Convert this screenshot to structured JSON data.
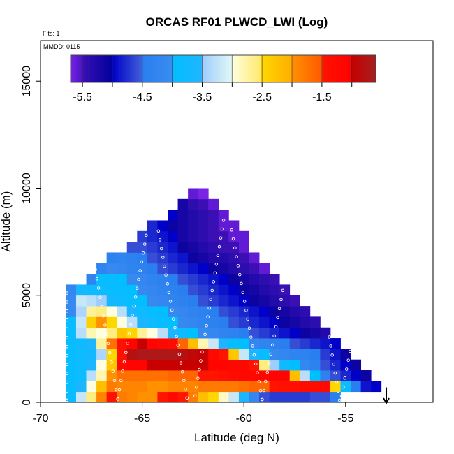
{
  "chart_data": {
    "type": "heatmap",
    "title": "ORCAS RF01 PLWCD_LWI (Log)",
    "xlabel": "Latitude (deg N)",
    "ylabel": "Altitude (m)",
    "flights_label": "Flts: 1",
    "date_label": "MMDD: 0115",
    "xlim": [
      -70,
      -50.7
    ],
    "ylim": [
      0,
      16900
    ],
    "x_ticks": [
      -70,
      -65,
      -60,
      -55
    ],
    "x_tick_labels": [
      "-70",
      "-65",
      "-60",
      "-55"
    ],
    "y_ticks": [
      0,
      5000,
      10000,
      15000
    ],
    "y_tick_labels": [
      "0",
      "5000",
      "10000",
      "15000"
    ],
    "grid": false,
    "x_centers": [
      -68.5,
      -68,
      -67.5,
      -67,
      -66.5,
      -66,
      -65.5,
      -65,
      -64.5,
      -64,
      -63.5,
      -63,
      -62.5,
      -62,
      -61.5,
      -61,
      -60.5,
      -60,
      -59.5,
      -59,
      -58.5,
      -58,
      -57.5,
      -57,
      -56.5,
      -56,
      -55.5,
      -55,
      -54.5,
      -54,
      -53.5
    ],
    "x_bin_width": 0.5,
    "y_centers": [
      250,
      750,
      1250,
      1750,
      2250,
      2750,
      3250,
      3750,
      4250,
      4750,
      5250,
      5750,
      6250,
      6750,
      7250,
      7750,
      8250,
      8750,
      9250,
      9750
    ],
    "y_bin_height": 500,
    "values": [
      [
        -3.9,
        -3.2,
        -2.6,
        -1.9,
        -1.4,
        -1.8,
        -1.9,
        -2.0,
        -2.0,
        -1.5,
        -1.2,
        -1.5,
        -1.8,
        -2.2,
        -2.5,
        -2.9,
        -3.2,
        -3.6,
        -4.2,
        -4.6,
        -4.7,
        -4.7,
        -4.7,
        -4.7,
        -4.6,
        -4.6,
        -4.5,
        null,
        null,
        null,
        null
      ],
      [
        -3.9,
        -3.6,
        -3.0,
        -2.2,
        -1.8,
        -1.9,
        -1.9,
        -1.9,
        -2.0,
        -2.0,
        -1.9,
        -1.9,
        -1.9,
        -1.8,
        -1.8,
        -1.8,
        -1.8,
        -1.7,
        -1.6,
        -1.6,
        -1.5,
        -1.4,
        -1.4,
        -1.3,
        -1.3,
        -1.2,
        -2.5,
        -3.8,
        -4.5,
        -4.9,
        -5.0
      ],
      [
        -3.9,
        -3.8,
        -3.3,
        -2.8,
        -2.0,
        -1.7,
        -1.7,
        -1.7,
        -1.7,
        -1.7,
        -1.6,
        -1.6,
        -1.6,
        -1.5,
        -1.5,
        -1.4,
        -1.3,
        -1.2,
        -1.2,
        -1.1,
        -1.1,
        -1.1,
        -2.2,
        -3.3,
        -4.0,
        -4.4,
        -4.6,
        -4.8,
        -5.0,
        -5.1,
        null
      ],
      [
        -3.9,
        -3.8,
        -3.6,
        -3.0,
        -2.3,
        -1.2,
        -1.1,
        -1.1,
        -1.0,
        -1.0,
        -1.0,
        -1.0,
        -1.0,
        -1.0,
        -1.1,
        -1.1,
        -1.2,
        -1.2,
        -1.5,
        -2.6,
        -3.5,
        -3.8,
        -4.0,
        -4.2,
        -4.4,
        -4.6,
        -4.8,
        -5.0,
        -5.1,
        null,
        null
      ],
      [
        -3.9,
        -3.8,
        -3.7,
        -3.4,
        -2.5,
        -1.4,
        -0.8,
        -0.7,
        -0.7,
        -0.7,
        -0.7,
        -0.8,
        -0.9,
        -1.0,
        -1.2,
        -1.5,
        -2.3,
        -3.2,
        -3.6,
        -3.9,
        -4.1,
        -4.2,
        -4.3,
        -4.4,
        -4.5,
        -4.7,
        -4.9,
        -5.1,
        null,
        null,
        null
      ],
      [
        -3.9,
        -3.8,
        -3.6,
        -2.7,
        -1.7,
        -1.4,
        -1.1,
        -1.0,
        -1.1,
        -1.2,
        -1.3,
        -1.6,
        -2.2,
        -2.8,
        -3.2,
        -3.6,
        -3.9,
        -4.0,
        -4.2,
        -4.3,
        -4.4,
        -4.5,
        -4.6,
        -4.7,
        -4.8,
        -4.9,
        -5.0,
        null,
        null,
        null,
        null
      ],
      [
        -3.9,
        -3.3,
        -2.8,
        -3.0,
        -2.6,
        -2.3,
        -2.5,
        -2.7,
        -3.0,
        -3.3,
        -3.6,
        -3.8,
        -4.0,
        -4.1,
        -4.2,
        -4.3,
        -4.4,
        -4.5,
        -4.6,
        -4.7,
        -4.8,
        -4.9,
        -5.0,
        -5.1,
        -5.2,
        -5.3,
        null,
        null,
        null,
        null,
        null
      ],
      [
        -3.9,
        -3.2,
        -2.4,
        -2.0,
        -2.5,
        -3.0,
        -3.3,
        -3.6,
        -3.8,
        -3.9,
        -4.0,
        -4.1,
        -4.2,
        -4.3,
        -4.4,
        -4.5,
        -4.6,
        -4.7,
        -4.8,
        -4.9,
        -5.0,
        -5.1,
        -5.2,
        -5.3,
        -5.4,
        null,
        null,
        null,
        null,
        null,
        null
      ],
      [
        -4.1,
        -3.4,
        -2.7,
        -2.6,
        -3.0,
        -3.3,
        -3.6,
        -3.8,
        -3.9,
        -4.0,
        -4.1,
        -4.2,
        -4.3,
        -4.4,
        -4.5,
        -4.6,
        -4.7,
        -4.8,
        -4.9,
        -5.0,
        -5.1,
        -5.2,
        -5.3,
        -5.4,
        null,
        null,
        null,
        null,
        null,
        null,
        null
      ],
      [
        -4.1,
        -3.2,
        -3.3,
        -3.5,
        -3.7,
        -3.8,
        -3.9,
        -4.0,
        -4.1,
        -4.2,
        -4.3,
        -4.4,
        -4.5,
        -4.6,
        -4.7,
        -4.8,
        -4.9,
        -5.0,
        -5.1,
        -5.2,
        -5.3,
        -5.4,
        -5.5,
        null,
        null,
        null,
        null,
        null,
        null,
        null,
        null
      ],
      [
        -4.2,
        -3.7,
        -3.8,
        -3.8,
        -3.9,
        -3.9,
        -4.0,
        -4.1,
        -4.2,
        -4.3,
        -4.4,
        -4.5,
        -4.6,
        -4.7,
        -4.8,
        -4.9,
        -5.0,
        -5.1,
        -5.2,
        -5.3,
        -5.4,
        -5.5,
        null,
        null,
        null,
        null,
        null,
        null,
        null,
        null,
        null
      ],
      [
        null,
        null,
        -4.3,
        -3.9,
        -3.9,
        -4.0,
        -4.1,
        -4.2,
        -4.3,
        -4.4,
        -4.5,
        -4.6,
        -4.7,
        -4.8,
        -4.9,
        -5.0,
        -5.1,
        -5.2,
        -5.3,
        -5.4,
        -5.5,
        null,
        null,
        null,
        null,
        null,
        null,
        null,
        null,
        null,
        null
      ],
      [
        null,
        null,
        null,
        -4.3,
        -4.1,
        -4.2,
        -4.3,
        -4.4,
        -4.5,
        -4.6,
        -4.7,
        -4.8,
        -4.9,
        -5.0,
        -5.1,
        -5.2,
        -5.3,
        -5.4,
        -5.5,
        -5.6,
        null,
        null,
        null,
        null,
        null,
        null,
        null,
        null,
        null,
        null,
        null
      ],
      [
        null,
        null,
        null,
        null,
        -4.4,
        -4.3,
        -4.4,
        -4.5,
        -4.6,
        -4.7,
        -4.8,
        -4.9,
        -5.1,
        -5.2,
        -5.3,
        -5.3,
        -5.4,
        -5.5,
        -5.6,
        null,
        null,
        null,
        null,
        null,
        null,
        null,
        null,
        null,
        null,
        null,
        null
      ],
      [
        null,
        null,
        null,
        null,
        null,
        null,
        -4.6,
        -4.6,
        -4.7,
        -4.8,
        -4.9,
        -5.1,
        -5.2,
        -5.3,
        -5.4,
        -5.5,
        -5.5,
        -5.6,
        null,
        null,
        null,
        null,
        null,
        null,
        null,
        null,
        null,
        null,
        null,
        null,
        null
      ],
      [
        null,
        null,
        null,
        null,
        null,
        null,
        null,
        -4.7,
        -4.8,
        -4.9,
        -5.0,
        -5.2,
        -5.3,
        -5.4,
        -5.5,
        -5.5,
        -5.6,
        -5.6,
        null,
        null,
        null,
        null,
        null,
        null,
        null,
        null,
        null,
        null,
        null,
        null,
        null
      ],
      [
        null,
        null,
        null,
        null,
        null,
        null,
        null,
        null,
        -4.8,
        -5.0,
        -5.1,
        -5.2,
        -5.3,
        -5.4,
        -5.5,
        -5.6,
        -5.6,
        null,
        null,
        null,
        null,
        null,
        null,
        null,
        null,
        null,
        null,
        null,
        null,
        null,
        null
      ],
      [
        null,
        null,
        null,
        null,
        null,
        null,
        null,
        null,
        null,
        null,
        -5.0,
        -5.2,
        -5.3,
        -5.4,
        -5.5,
        -5.6,
        null,
        null,
        null,
        null,
        null,
        null,
        null,
        null,
        null,
        null,
        null,
        null,
        null,
        null,
        null
      ],
      [
        null,
        null,
        null,
        null,
        null,
        null,
        null,
        null,
        null,
        null,
        null,
        -5.2,
        -5.4,
        -5.5,
        -5.6,
        null,
        null,
        null,
        null,
        null,
        null,
        null,
        null,
        null,
        null,
        null,
        null,
        null,
        null,
        null,
        null
      ],
      [
        null,
        null,
        null,
        null,
        null,
        null,
        null,
        null,
        null,
        null,
        null,
        null,
        -5.6,
        -5.7,
        null,
        null,
        null,
        null,
        null,
        null,
        null,
        null,
        null,
        null,
        null,
        null,
        null,
        null,
        null,
        null,
        null
      ]
    ],
    "colorbar": {
      "range": [
        -5.7,
        -0.6
      ],
      "ticks": [
        -5.5,
        -4.5,
        -3.5,
        -2.5,
        -1.5
      ],
      "tick_labels": [
        "-5.5",
        "-4.5",
        "-3.5",
        "-2.5",
        "-1.5"
      ],
      "minor_ticks": [
        -5.0,
        -4.0,
        -3.0,
        -2.0,
        -1.0
      ],
      "segments": [
        {
          "from": -5.7,
          "to": -5.5,
          "colors": [
            "#7a22e6",
            "#4a14c4"
          ]
        },
        {
          "from": -5.5,
          "to": -5.0,
          "colors": [
            "#3a10b4",
            "#00009c"
          ]
        },
        {
          "from": -5.0,
          "to": -4.5,
          "colors": [
            "#0000c8",
            "#4262d8"
          ]
        },
        {
          "from": -4.5,
          "to": -4.0,
          "colors": [
            "#2a7ff0",
            "#3a8cf0"
          ]
        },
        {
          "from": -4.0,
          "to": -3.5,
          "colors": [
            "#00bfff",
            "#22b4ff"
          ]
        },
        {
          "from": -3.5,
          "to": -3.0,
          "colors": [
            "#9ecdff",
            "#e2f8f5"
          ]
        },
        {
          "from": -3.0,
          "to": -2.5,
          "colors": [
            "#ffffe0",
            "#ffe868"
          ]
        },
        {
          "from": -2.5,
          "to": -2.0,
          "colors": [
            "#ffd700",
            "#ffae00"
          ]
        },
        {
          "from": -2.0,
          "to": -1.5,
          "colors": [
            "#ff9000",
            "#ff5a00"
          ]
        },
        {
          "from": -1.5,
          "to": -1.0,
          "colors": [
            "#ff1400",
            "#ff0000"
          ]
        },
        {
          "from": -1.0,
          "to": -0.6,
          "colors": [
            "#c80000",
            "#a52020"
          ]
        }
      ]
    },
    "flight_track": [
      [
        [
          -68.7,
          100
        ],
        [
          -68.7,
          5100
        ]
      ],
      [
        [
          -66.2,
          150
        ],
        [
          -67.3,
          6200
        ]
      ],
      [
        [
          -66.2,
          150
        ],
        [
          -65.4,
          4500
        ],
        [
          -64.8,
          7800
        ]
      ],
      [
        [
          -62.8,
          200
        ],
        [
          -64.2,
          8000
        ]
      ],
      [
        [
          -62.4,
          300
        ],
        [
          -61.0,
          8500
        ]
      ],
      [
        [
          -60.6,
          8050
        ],
        [
          -59.1,
          130
        ]
      ],
      [
        [
          -58.0,
          5650
        ],
        [
          -59.1,
          130
        ]
      ],
      [
        [
          -55.8,
          3050
        ],
        [
          -55.3,
          100
        ]
      ],
      [
        [
          -55.2,
          300
        ],
        [
          -54.7,
          2800
        ]
      ]
    ],
    "end_marker": {
      "lat": -53.0,
      "alt_top": 700,
      "alt_bottom": 0,
      "symbol": "down-arrow",
      "color": "#000000"
    },
    "track_color": "#ffffff"
  }
}
